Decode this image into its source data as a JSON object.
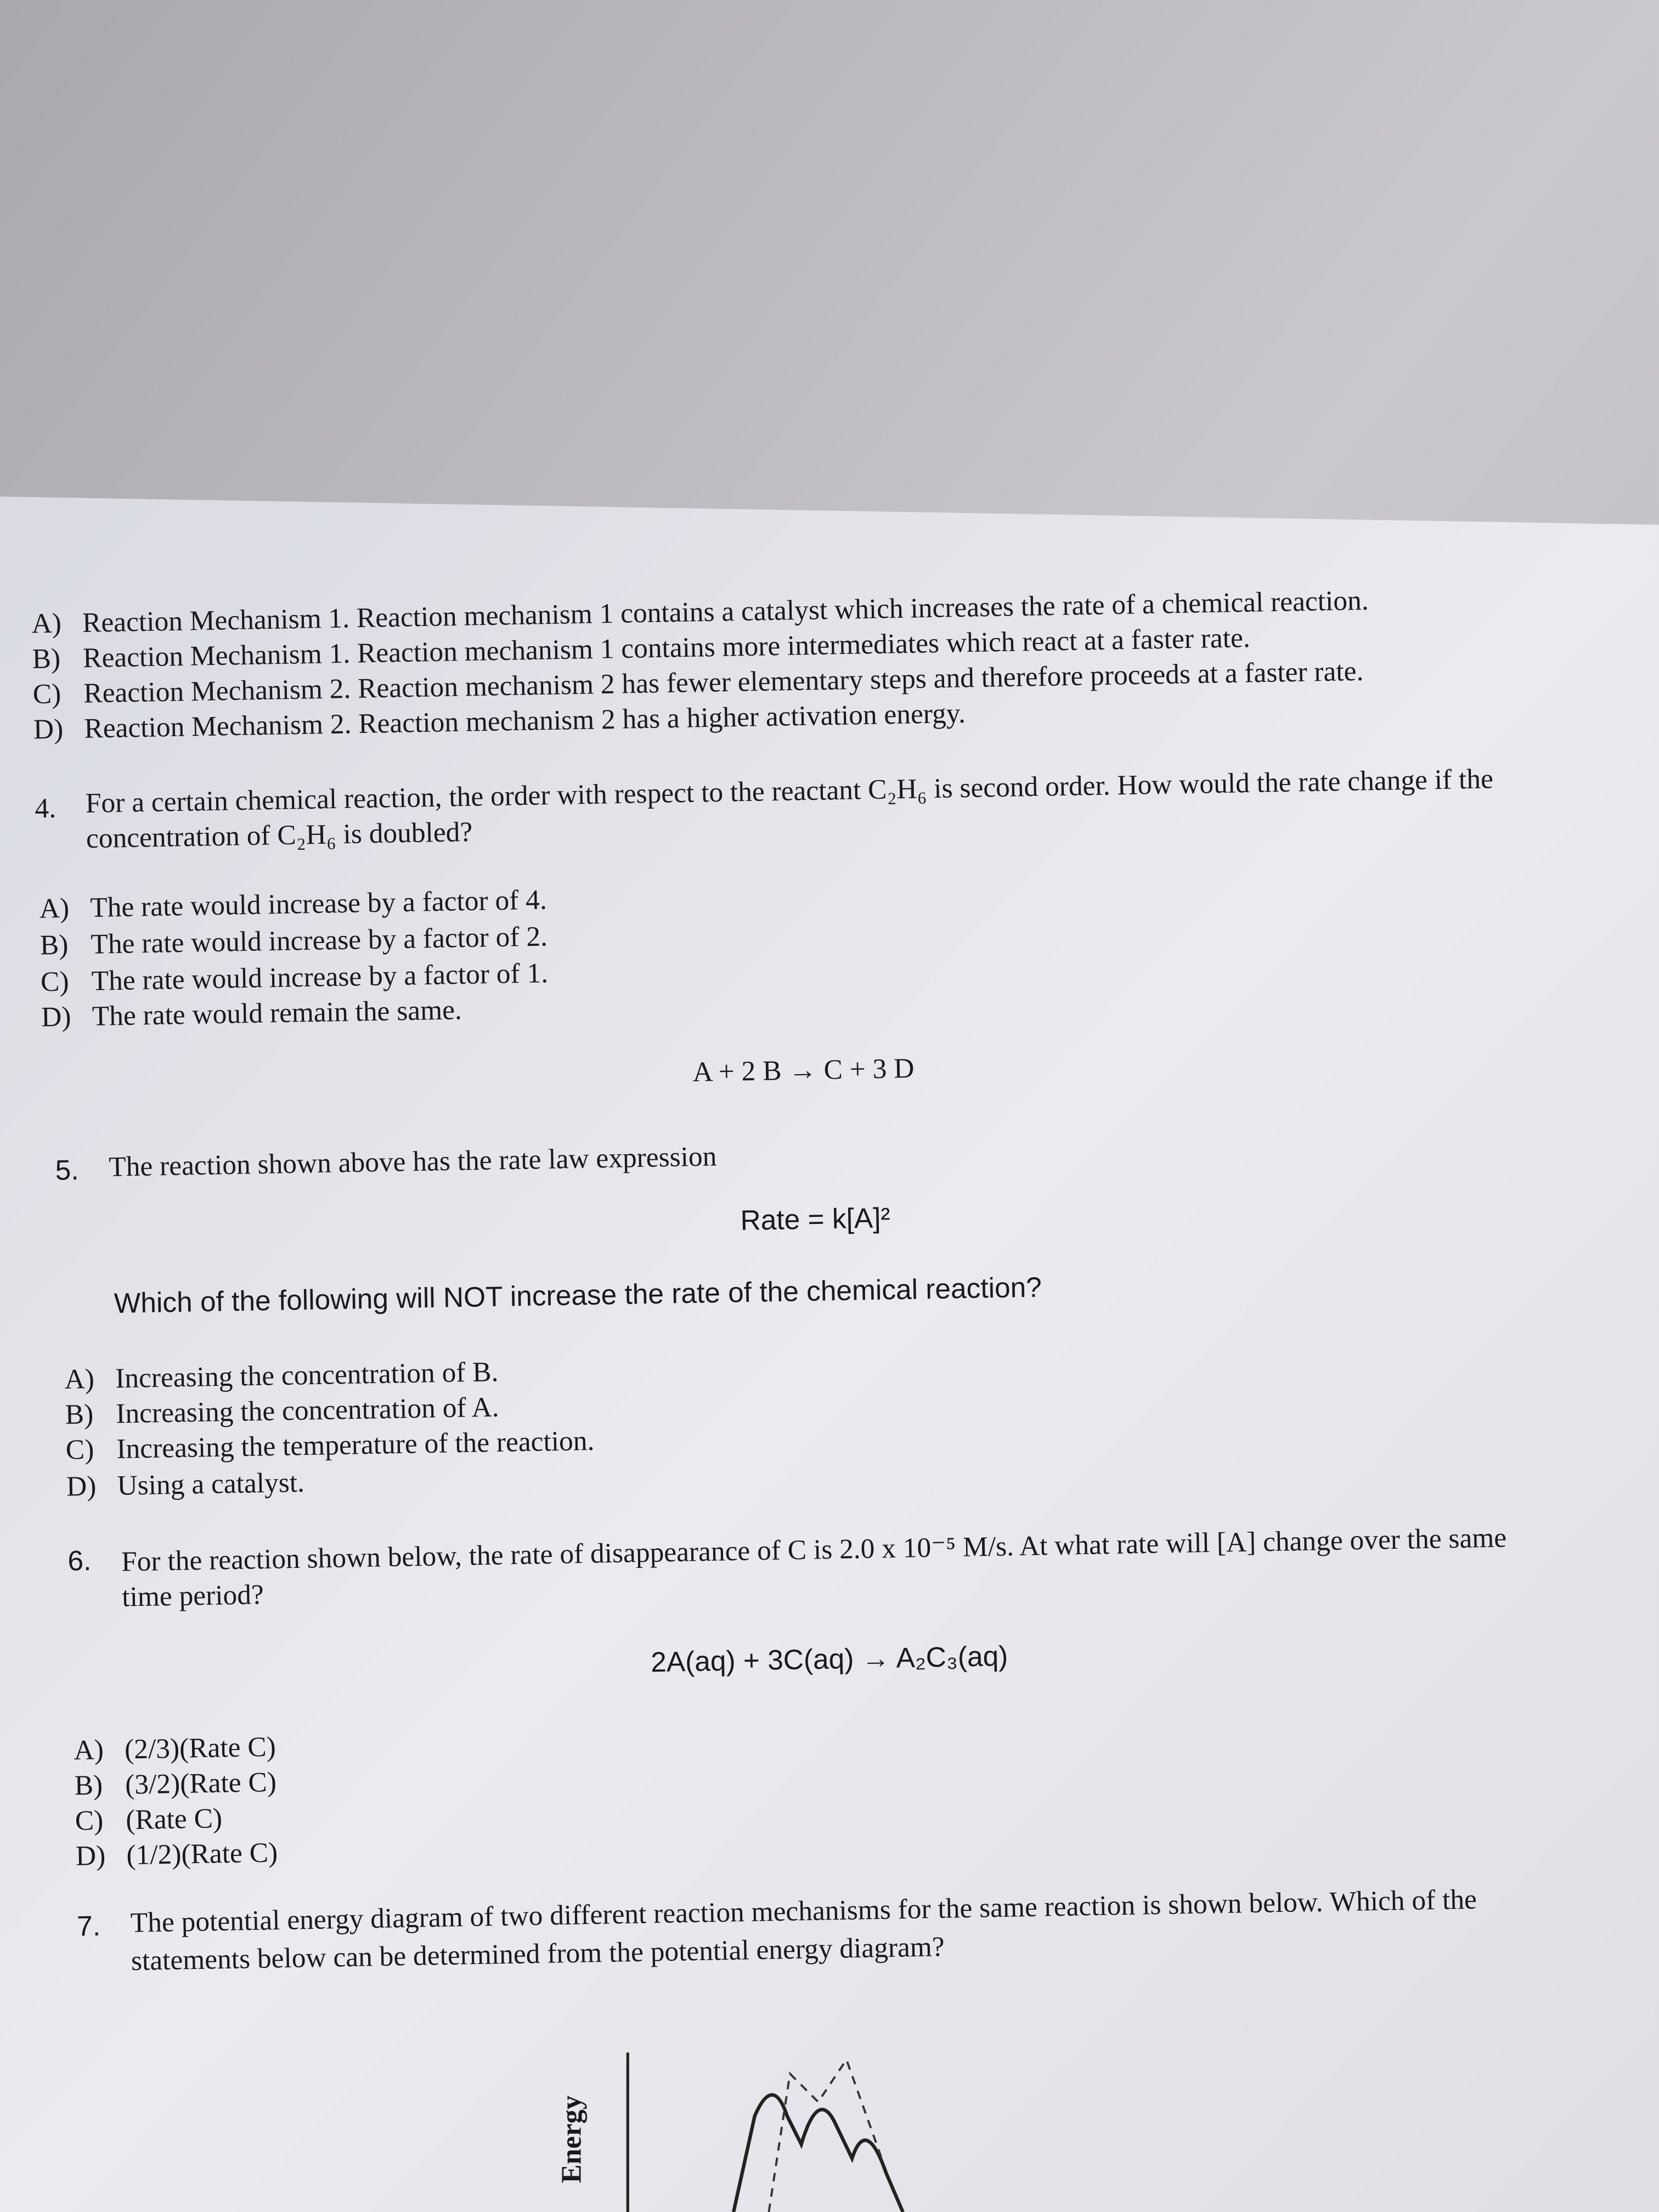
{
  "question_3": {
    "options": [
      {
        "letter": "A)",
        "text": "Reaction Mechanism 1.  Reaction mechanism 1 contains a catalyst which increases the rate of a chemical reaction."
      },
      {
        "letter": "B)",
        "text": "Reaction Mechanism 1.  Reaction mechanism 1 contains more intermediates which react at a faster rate."
      },
      {
        "letter": "C)",
        "text": "Reaction Mechanism 2.  Reaction mechanism 2 has fewer elementary steps and therefore proceeds at a faster rate."
      },
      {
        "letter": "D)",
        "text": "Reaction Mechanism 2.  Reaction mechanism 2 has a higher activation energy."
      }
    ]
  },
  "question_4": {
    "number": "4.",
    "text_lines": [
      "For a certain chemical reaction, the order with respect to the reactant C₂H₆ is second order.  How would the rate change if the",
      "concentration of C₂H₆ is doubled?"
    ],
    "options": [
      {
        "letter": "A)",
        "text": "The rate would increase by a factor of 4."
      },
      {
        "letter": "B)",
        "text": "The rate would increase by a factor of 2."
      },
      {
        "letter": "C)",
        "text": "The rate would increase by a factor of 1."
      },
      {
        "letter": "D)",
        "text": "The rate would remain the same."
      }
    ]
  },
  "question_5": {
    "reaction": "A + 2 B → C + 3 D",
    "number": "5.",
    "text": "The reaction shown above has the rate law expression",
    "rate_law": "Rate = k[A]²",
    "question": "Which of the following will NOT increase the rate of the chemical reaction?",
    "options": [
      {
        "letter": "A)",
        "text": "Increasing the concentration of B."
      },
      {
        "letter": "B)",
        "text": "Increasing the concentration of A."
      },
      {
        "letter": "C)",
        "text": "Increasing the temperature of the reaction."
      },
      {
        "letter": "D)",
        "text": "Using a catalyst."
      }
    ]
  },
  "question_6": {
    "number": "6.",
    "text_lines": [
      "For the reaction shown below, the rate of disappearance of C is 2.0 x 10⁻⁵ M/s.  At what rate will [A] change over the same",
      "time period?"
    ],
    "reaction": "2A(aq) + 3C(aq) → A₂C₃(aq)",
    "options": [
      {
        "letter": "A)",
        "text": "(2/3)(Rate C)"
      },
      {
        "letter": "B)",
        "text": "(3/2)(Rate C)"
      },
      {
        "letter": "C)",
        "text": "(Rate C)"
      },
      {
        "letter": "D)",
        "text": "(1/2)(Rate C)"
      }
    ]
  },
  "question_7": {
    "number": "7.",
    "text_lines": [
      "The potential energy diagram of two different reaction mechanisms for the same reaction is shown below.  Which of the",
      "statements below can be determined from the potential energy diagram?"
    ],
    "diagram_axis_label": "Energy"
  }
}
